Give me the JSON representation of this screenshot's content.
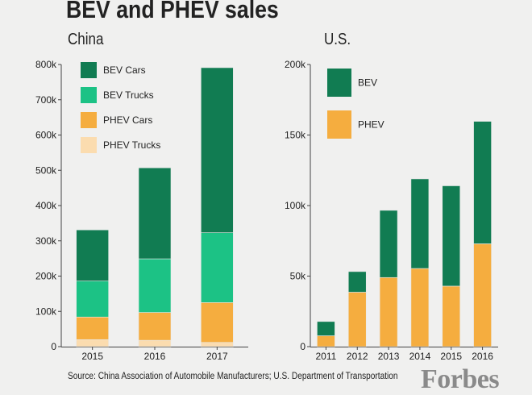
{
  "title": "BEV and PHEV sales",
  "source": "Source: China Association of Automobile Manufacturers; U.S. Department of Transportation",
  "brand": "Forbes",
  "colors": {
    "bev_cars": "#117c52",
    "bev_trucks": "#1cc285",
    "phev_cars": "#f5ad3f",
    "phev_trucks": "#fbdcaf",
    "us_bev": "#117c52",
    "us_phev": "#f5ad3f",
    "background": "#f0f0ef"
  },
  "chart_data": [
    {
      "type": "bar",
      "stacked": true,
      "title": "China",
      "categories": [
        "2015",
        "2016",
        "2017"
      ],
      "series": [
        {
          "name": "PHEV Trucks",
          "values": [
            20000,
            18000,
            12000
          ]
        },
        {
          "name": "PHEV Cars",
          "values": [
            64000,
            79000,
            113000
          ]
        },
        {
          "name": "BEV Trucks",
          "values": [
            102000,
            152000,
            198000
          ]
        },
        {
          "name": "BEV Cars",
          "values": [
            145000,
            258000,
            468000
          ]
        }
      ],
      "legend_order": [
        "BEV Cars",
        "BEV Trucks",
        "PHEV Cars",
        "PHEV Trucks"
      ],
      "legend_position": "top-left",
      "ylim": [
        0,
        800000
      ],
      "yticks": [
        "0",
        "100k",
        "200k",
        "300k",
        "400k",
        "500k",
        "600k",
        "700k",
        "800k"
      ],
      "grid": false
    },
    {
      "type": "bar",
      "stacked": true,
      "title": "U.S.",
      "categories": [
        "2011",
        "2012",
        "2013",
        "2014",
        "2015",
        "2016"
      ],
      "series": [
        {
          "name": "PHEV",
          "values": [
            7700,
            38600,
            49000,
            55400,
            42900,
            72900
          ]
        },
        {
          "name": "BEV",
          "values": [
            10100,
            14600,
            47600,
            63500,
            71100,
            86800
          ]
        }
      ],
      "legend_order": [
        "BEV",
        "PHEV"
      ],
      "legend_position": "top-left",
      "ylim": [
        0,
        200000
      ],
      "yticks": [
        "0",
        "50k",
        "100k",
        "150k",
        "200k"
      ],
      "grid": false
    }
  ]
}
